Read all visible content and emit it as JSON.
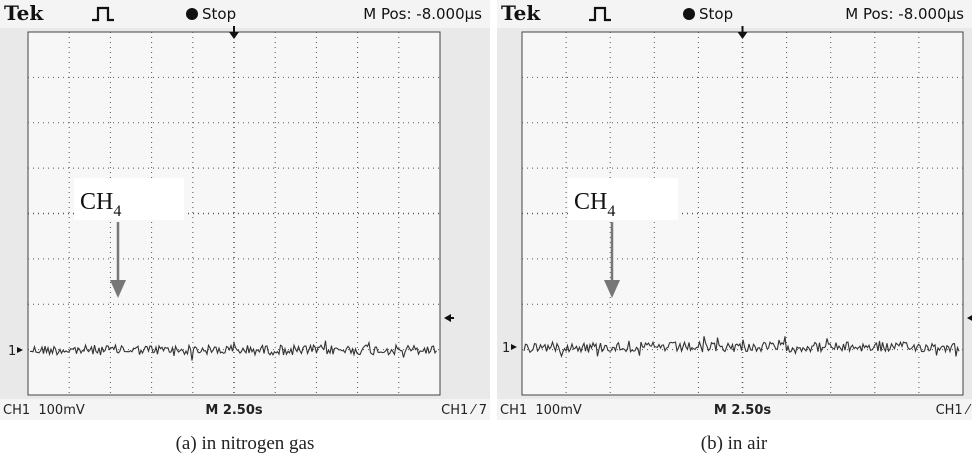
{
  "panels": [
    {
      "header": {
        "brand": "Tek",
        "status": "Stop",
        "position": "M Pos: -8.000µs"
      },
      "channel_marker": "1",
      "annotation": {
        "label": "CH",
        "subscript": "4"
      },
      "footer": {
        "channel_scale": "CH1  100mV",
        "timebase": "M 2.50s",
        "trigger": "CH1 ⁄ 7"
      },
      "caption": "(a) in nitrogen gas"
    },
    {
      "header": {
        "brand": "Tek",
        "status": "Stop",
        "position": "M Pos: -8.000µs"
      },
      "channel_marker": "1",
      "annotation": {
        "label": "CH",
        "subscript": "4"
      },
      "footer": {
        "channel_scale": "CH1  100mV",
        "timebase": "M 2.50s",
        "trigger": "CH1 ⁄"
      },
      "caption": "(b) in air"
    }
  ]
}
